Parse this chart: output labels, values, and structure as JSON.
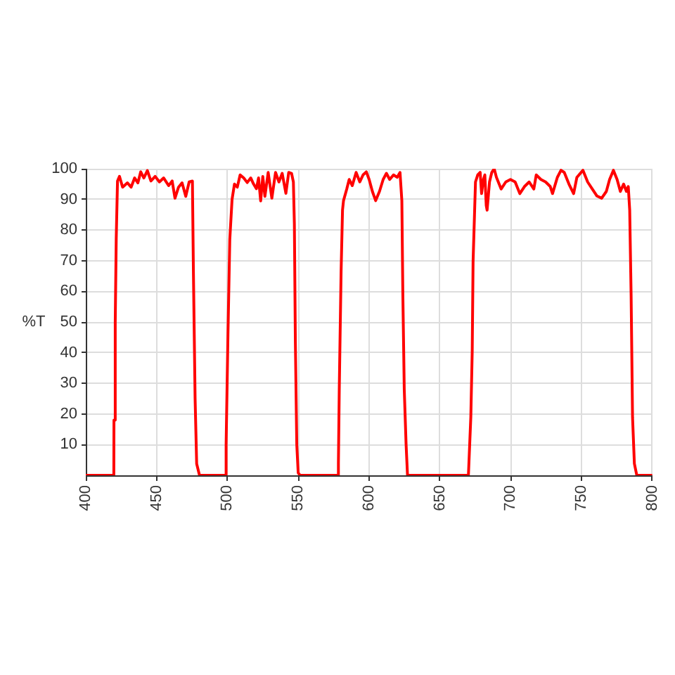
{
  "chart_data": {
    "type": "line",
    "ylabel": "%T",
    "xlim": [
      400,
      800
    ],
    "xticks": [
      400,
      450,
      500,
      550,
      600,
      650,
      700,
      750,
      800
    ],
    "ylim": [
      0,
      100
    ],
    "yticks": [
      10,
      20,
      30,
      40,
      50,
      60,
      70,
      80,
      90,
      100
    ],
    "grid": true,
    "marker": "none",
    "line_style": "solid",
    "series": [
      {
        "color": "#ff0000",
        "x": [
          400,
          419.8,
          419.9,
          420.8,
          421.5,
          422.4,
          423.8,
          426,
          429.4,
          432,
          434.5,
          436.8,
          438.8,
          441,
          443.5,
          446,
          449,
          452,
          455,
          458.5,
          461,
          463,
          465.5,
          468,
          470.6,
          473,
          475.3,
          476,
          477.2,
          478.3,
          480.3,
          498.5,
          499.1,
          500.4,
          501.7,
          503.3,
          505,
          507,
          509,
          511.5,
          514,
          516.5,
          518.5,
          520.5,
          522,
          523.5,
          525,
          526.5,
          528.8,
          531.4,
          534,
          536.4,
          538.7,
          541.3,
          543.3,
          545.3,
          546.6,
          547.3,
          548,
          549,
          550,
          551.3,
          578,
          578.4,
          579,
          580.3,
          581.3,
          582,
          584.3,
          586,
          588.2,
          590.9,
          593.5,
          595.8,
          598.1,
          600.1,
          602.4,
          604.7,
          607.4,
          610,
          612.3,
          614.6,
          617.3,
          619.9,
          621.9,
          623.2,
          623.9,
          624.9,
          626.2,
          627.2,
          670.2,
          671.9,
          672.9,
          673.5,
          674.5,
          675.2,
          676.8,
          678.5,
          679.5,
          680.8,
          681.8,
          682.8,
          683.4,
          685.1,
          686.7,
          688.4,
          690,
          693.3,
          696.6,
          699.9,
          703.2,
          706.5,
          709.8,
          713.1,
          716.4,
          718.1,
          721.4,
          724.7,
          728,
          729.6,
          733,
          735.6,
          737.9,
          741.2,
          744.5,
          746.8,
          751.1,
          754.4,
          757.7,
          761,
          764.3,
          767.6,
          769.9,
          772.6,
          775.2,
          777.5,
          779.8,
          781.8,
          783.1,
          784.1,
          785.1,
          786.1,
          787.4,
          789.1,
          800
        ],
        "values": [
          0,
          0,
          18,
          50,
          77,
          96,
          97.5,
          94,
          95.4,
          94,
          97,
          95.4,
          99,
          97,
          99.4,
          96,
          97.5,
          95.7,
          97,
          94.5,
          96,
          90.4,
          94,
          95.4,
          91,
          95.7,
          96,
          66.6,
          25,
          3.8,
          0,
          0,
          10,
          46,
          77,
          90,
          95,
          94,
          98,
          97,
          95.5,
          97,
          95,
          93.5,
          97,
          89.5,
          97.5,
          91,
          98.8,
          90.4,
          98.8,
          95.7,
          98.5,
          92,
          98.8,
          98.5,
          95.7,
          82,
          43.6,
          10,
          0.8,
          0,
          0,
          3.8,
          28,
          66.6,
          86.5,
          89.6,
          93.4,
          96.5,
          94.5,
          98.8,
          95.7,
          98,
          99,
          96.5,
          92.6,
          89.6,
          92.6,
          96.5,
          98.5,
          96.5,
          98,
          97.2,
          98.8,
          89.6,
          59,
          28,
          10,
          0,
          0,
          19,
          40.6,
          69.7,
          85,
          95.7,
          98,
          98.8,
          91.9,
          96.5,
          98,
          88,
          86.5,
          95.7,
          98.8,
          100,
          97.2,
          93.4,
          95.7,
          96.5,
          95.7,
          91.9,
          94.2,
          95.7,
          93.4,
          98,
          96.5,
          95.7,
          94.2,
          91.9,
          97.2,
          99.5,
          98.8,
          95,
          91.9,
          97.2,
          99.5,
          95.7,
          93.4,
          91.1,
          90.4,
          92.6,
          96.5,
          99.5,
          96.5,
          92.6,
          95,
          92.6,
          94.2,
          86.5,
          58.7,
          19,
          3.8,
          0,
          0
        ]
      }
    ]
  }
}
